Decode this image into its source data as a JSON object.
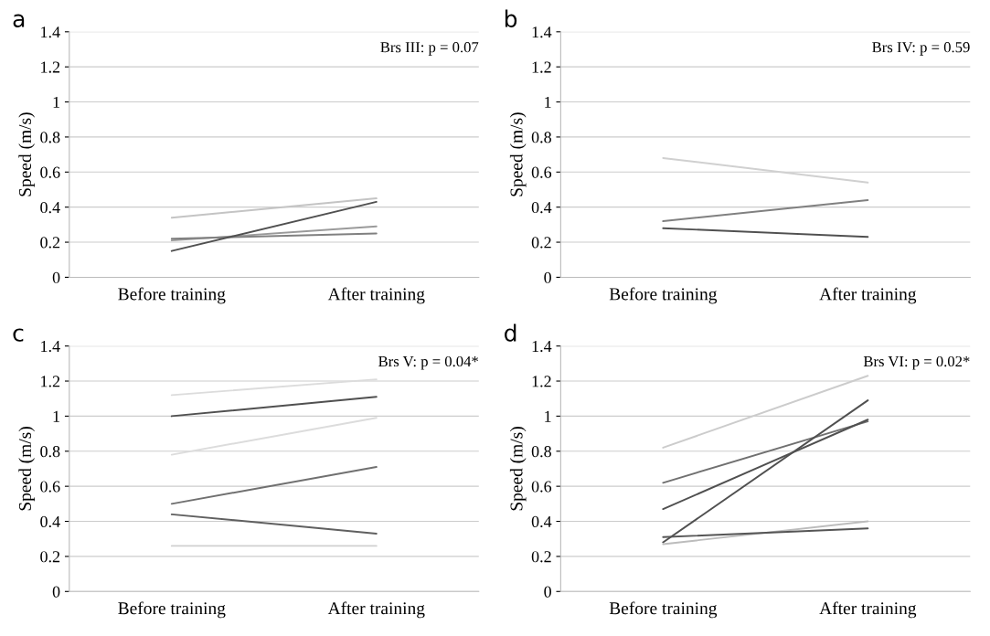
{
  "chart_data": [
    {
      "type": "line",
      "title": "a",
      "ylabel": "Speed (m/s)",
      "categories": [
        "Before training",
        "After training"
      ],
      "ylim": [
        0,
        1.4
      ],
      "yticks": [
        0,
        0.2,
        0.4,
        0.6,
        0.8,
        1,
        1.2,
        1.4
      ],
      "grid": "y",
      "annotations": [
        "Brs III: p = 0.07"
      ],
      "series": [
        {
          "color": "#c4c4c4",
          "values": [
            0.34,
            0.45
          ]
        },
        {
          "color": "#9a9a9a",
          "values": [
            0.21,
            0.29
          ]
        },
        {
          "color": "#808080",
          "values": [
            0.22,
            0.25
          ]
        },
        {
          "color": "#505050",
          "values": [
            0.15,
            0.43
          ]
        }
      ]
    },
    {
      "type": "line",
      "title": "b",
      "ylabel": "Speed (m/s)",
      "categories": [
        "Before training",
        "After training"
      ],
      "ylim": [
        0,
        1.4
      ],
      "yticks": [
        0,
        0.2,
        0.4,
        0.6,
        0.8,
        1,
        1.2,
        1.4
      ],
      "grid": "y",
      "annotations": [
        "Brs IV: p = 0.59"
      ],
      "series": [
        {
          "color": "#d0d0d0",
          "values": [
            0.68,
            0.54
          ]
        },
        {
          "color": "#808080",
          "values": [
            0.32,
            0.44
          ]
        },
        {
          "color": "#505050",
          "values": [
            0.28,
            0.23
          ]
        }
      ]
    },
    {
      "type": "line",
      "title": "c",
      "ylabel": "Speed (m/s)",
      "categories": [
        "Before training",
        "After training"
      ],
      "ylim": [
        0,
        1.4
      ],
      "yticks": [
        0,
        0.2,
        0.4,
        0.6,
        0.8,
        1,
        1.2,
        1.4
      ],
      "grid": "y",
      "annotations": [
        "Brs V: p = 0.04*"
      ],
      "series": [
        {
          "color": "#dcdcdc",
          "values": [
            1.12,
            1.21
          ]
        },
        {
          "color": "#505050",
          "values": [
            1.0,
            1.11
          ]
        },
        {
          "color": "#dcdcdc",
          "values": [
            0.78,
            0.99
          ]
        },
        {
          "color": "#707070",
          "values": [
            0.5,
            0.71
          ]
        },
        {
          "color": "#606060",
          "values": [
            0.44,
            0.33
          ]
        },
        {
          "color": "#d0d0d0",
          "values": [
            0.26,
            0.26
          ]
        }
      ]
    },
    {
      "type": "line",
      "title": "d",
      "ylabel": "Speed (m/s)",
      "categories": [
        "Before training",
        "After training"
      ],
      "ylim": [
        0,
        1.4
      ],
      "yticks": [
        0,
        0.2,
        0.4,
        0.6,
        0.8,
        1,
        1.2,
        1.4
      ],
      "grid": "y",
      "annotations": [
        "Brs VI: p = 0.02*"
      ],
      "series": [
        {
          "color": "#cccccc",
          "values": [
            0.82,
            1.23
          ]
        },
        {
          "color": "#707070",
          "values": [
            0.62,
            0.97
          ]
        },
        {
          "color": "#505050",
          "values": [
            0.47,
            0.98
          ]
        },
        {
          "color": "#505050",
          "values": [
            0.28,
            1.09
          ]
        },
        {
          "color": "#bcbcbc",
          "values": [
            0.27,
            0.4
          ]
        },
        {
          "color": "#555555",
          "values": [
            0.31,
            0.36
          ]
        }
      ]
    }
  ]
}
